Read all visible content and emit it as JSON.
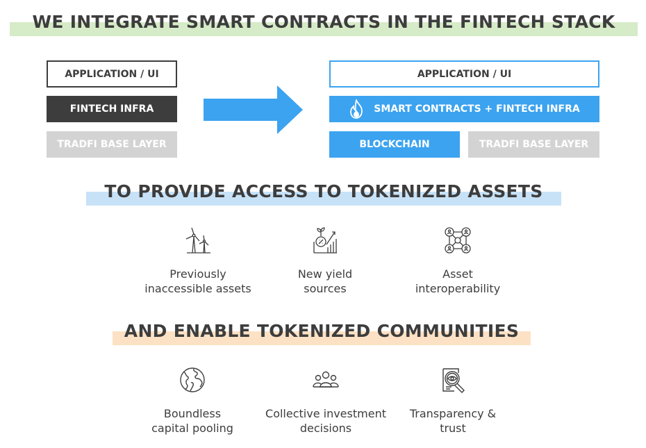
{
  "headings": {
    "integrate": "WE INTEGRATE SMART CONTRACTS IN THE FINTECH STACK",
    "provide": "TO PROVIDE ACCESS TO TOKENIZED ASSETS",
    "enable": "AND ENABLE TOKENIZED COMMUNITIES"
  },
  "left_stack": {
    "application": "APPLICATION / UI",
    "fintech": "FINTECH INFRA",
    "tradfi": "TRADFI BASE LAYER"
  },
  "right_stack": {
    "application": "APPLICATION / UI",
    "smart_contracts": "SMART CONTRACTS + FINTECH INFRA",
    "blockchain": "BLOCKCHAIN",
    "tradfi": "TRADFI BASE LAYER"
  },
  "assets": [
    {
      "icon": "wind-turbine-icon",
      "line1": "Previously",
      "line2": "inaccessible assets"
    },
    {
      "icon": "yield-growth-icon",
      "line1": "New yield",
      "line2": "sources"
    },
    {
      "icon": "network-users-icon",
      "line1": "Asset",
      "line2": "interoperability"
    }
  ],
  "communities": [
    {
      "icon": "globe-icon",
      "line1": "Boundless",
      "line2": "capital pooling"
    },
    {
      "icon": "group-people-icon",
      "line1": "Collective investment",
      "line2": "decisions"
    },
    {
      "icon": "document-magnifier-icon",
      "line1": "Transparency &",
      "line2": "trust"
    }
  ],
  "colors": {
    "dark": "#3d3d3d",
    "blue": "#3ba3f0",
    "gray": "#d3d3d3",
    "green_highlight": "#d6ebc7",
    "blue_highlight": "#c7e2f7",
    "orange_highlight": "#fde1c4"
  }
}
